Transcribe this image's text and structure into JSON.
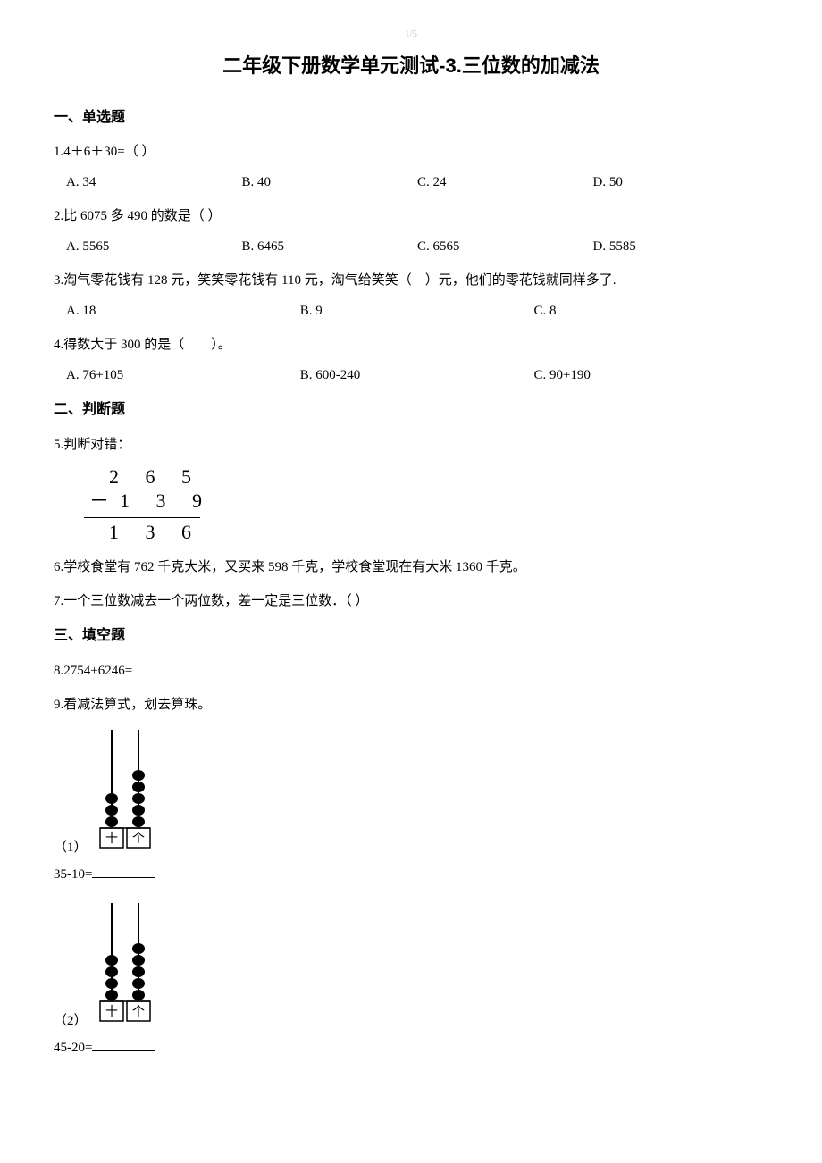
{
  "pageNumber": "1/5",
  "title": "二年级下册数学单元测试-3.三位数的加减法",
  "sections": {
    "s1": {
      "heading": "一、单选题"
    },
    "s2": {
      "heading": "二、判断题"
    },
    "s3": {
      "heading": "三、填空题"
    }
  },
  "q1": {
    "stem": "1.4＋6＋30=（  ）",
    "opts": {
      "a": "A. 34",
      "b": "B. 40",
      "c": "C. 24",
      "d": "D. 50"
    }
  },
  "q2": {
    "stem": "2.比 6075 多 490 的数是（  ）",
    "opts": {
      "a": "A. 5565",
      "b": "B. 6465",
      "c": "C. 6565",
      "d": "D. 5585"
    }
  },
  "q3": {
    "stem": "3.淘气零花钱有 128 元，笑笑零花钱有 110 元，淘气给笑笑（　）元，他们的零花钱就同样多了.",
    "opts": {
      "a": "A. 18",
      "b": "B. 9",
      "c": "C. 8"
    }
  },
  "q4": {
    "stem": "4.得数大于 300 的是（　　）。",
    "opts": {
      "a": "A. 76+105",
      "b": "B. 600-240",
      "c": "C. 90+190"
    }
  },
  "q5": {
    "stem": "5.判断对错：",
    "subtraction": {
      "row1": "2 6 5",
      "row2_minus": "－",
      "row2": "1 3 9",
      "row3": "1 3 6"
    }
  },
  "q6": {
    "stem": "6.学校食堂有 762 千克大米，又买来 598 千克，学校食堂现在有大米 1360 千克。"
  },
  "q7": {
    "stem": "7.一个三位数减去一个两位数，差一定是三位数．（  ）"
  },
  "q8": {
    "stem": "8.2754+6246="
  },
  "q9": {
    "stem": "9.看减法算式，划去算珠。",
    "sub1": {
      "label": "（1）",
      "eq": "35-10="
    },
    "sub2": {
      "label": "（2）",
      "eq": "45-20="
    }
  },
  "abacus1": {
    "cols": [
      {
        "beads": 3,
        "label": "十"
      },
      {
        "beads": 5,
        "label": "个"
      }
    ],
    "frame_color": "#000000",
    "bead_color": "#000000",
    "rod_height": 110,
    "bead_r": 7,
    "col_gap": 30,
    "label_box_w": 26,
    "label_box_h": 22
  },
  "abacus2": {
    "cols": [
      {
        "beads": 4,
        "label": "十"
      },
      {
        "beads": 5,
        "label": "个"
      }
    ],
    "frame_color": "#000000",
    "bead_color": "#000000",
    "rod_height": 110,
    "bead_r": 7,
    "col_gap": 30,
    "label_box_w": 26,
    "label_box_h": 22
  }
}
